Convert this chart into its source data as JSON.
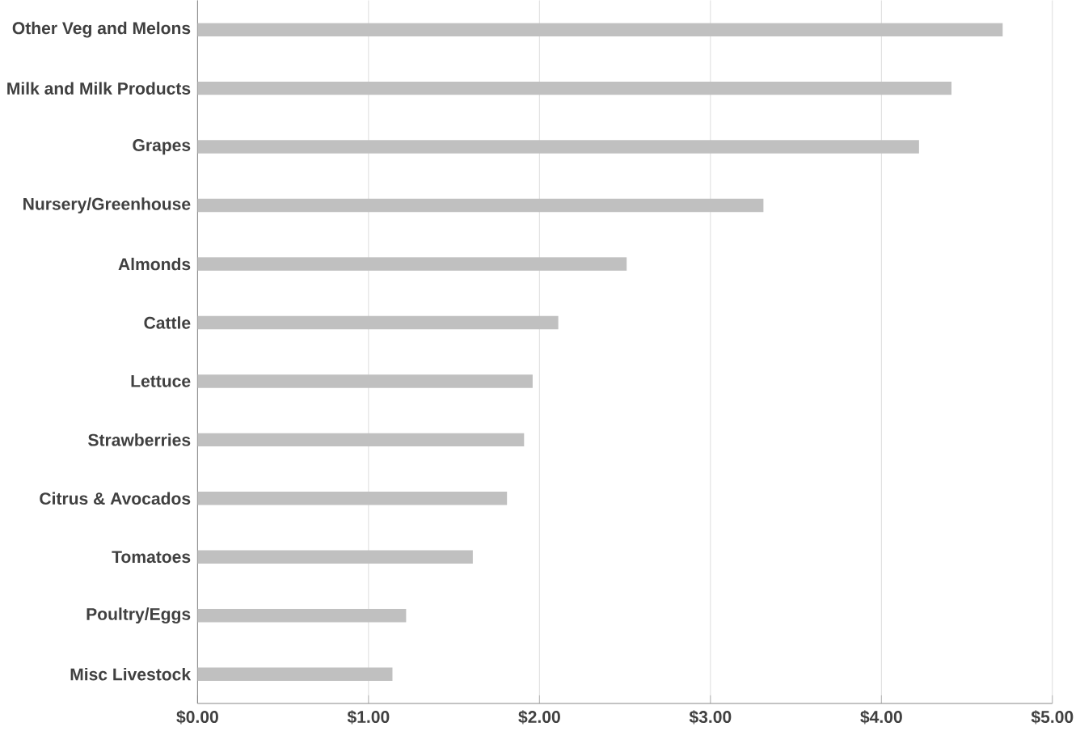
{
  "chart_data": {
    "type": "bar",
    "orientation": "horizontal",
    "categories": [
      "Other Veg and Melons",
      "Milk and Milk Products",
      "Grapes",
      "Nursery/Greenhouse",
      "Almonds",
      "Cattle",
      "Lettuce",
      "Strawberries",
      "Citrus & Avocados",
      "Tomatoes",
      "Poultry/Eggs",
      "Misc Livestock"
    ],
    "values": [
      4.71,
      4.41,
      4.22,
      3.31,
      2.51,
      2.11,
      1.96,
      1.91,
      1.81,
      1.61,
      1.22,
      1.14
    ],
    "color": "#c0c0c0",
    "xlim": [
      0,
      5
    ],
    "xticks": [
      {
        "value": 0,
        "label": "$0.00"
      },
      {
        "value": 1,
        "label": "$1.00"
      },
      {
        "value": 2,
        "label": "$2.00"
      },
      {
        "value": 3,
        "label": "$3.00"
      },
      {
        "value": 4,
        "label": "$4.00"
      },
      {
        "value": 5,
        "label": "$5.00"
      }
    ],
    "grid": "x"
  }
}
